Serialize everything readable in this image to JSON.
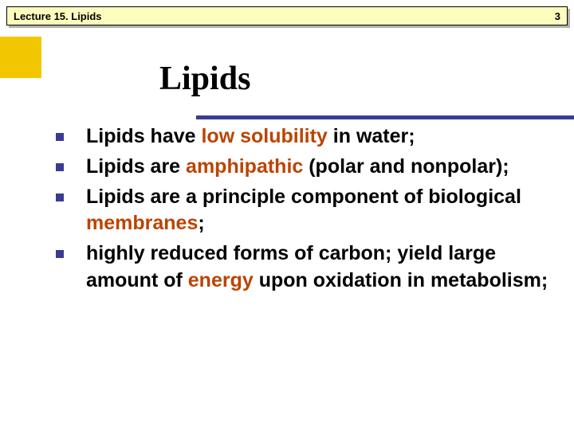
{
  "header": {
    "title": "Lecture 15. Lipids",
    "page_number": "3",
    "bg_color": "#fdfdbe",
    "border_color": "#000000",
    "shadow_color": "#b0b0b0",
    "font_size": 13
  },
  "accent": {
    "color": "#f2c600",
    "width": 52,
    "height": 52
  },
  "title": {
    "text": "Lipids",
    "underline_color": "#3b3b94",
    "font_size": 42,
    "font_family": "Georgia"
  },
  "bullets": {
    "marker_color": "#3b3b94",
    "marker_size": 10,
    "text_color": "#000000",
    "highlight_color": "#bb4400",
    "font_size": 25,
    "items": [
      {
        "segments": [
          {
            "text": "Lipids have ",
            "hl": false
          },
          {
            "text": "low solubility ",
            "hl": true
          },
          {
            "text": "in water;",
            "hl": false
          }
        ]
      },
      {
        "segments": [
          {
            "text": "Lipids are ",
            "hl": false
          },
          {
            "text": "amphipathic ",
            "hl": true
          },
          {
            "text": "(polar and nonpolar);",
            "hl": false
          }
        ]
      },
      {
        "segments": [
          {
            "text": "Lipids are a principle component of biological ",
            "hl": false
          },
          {
            "text": "membranes",
            "hl": true
          },
          {
            "text": ";",
            "hl": false
          }
        ]
      },
      {
        "segments": [
          {
            "text": "highly reduced forms of carbon; yield large amount of ",
            "hl": false
          },
          {
            "text": "energy ",
            "hl": true
          },
          {
            "text": "upon oxidation in metabolism;",
            "hl": false
          }
        ]
      }
    ]
  },
  "background_color": "#ffffff"
}
